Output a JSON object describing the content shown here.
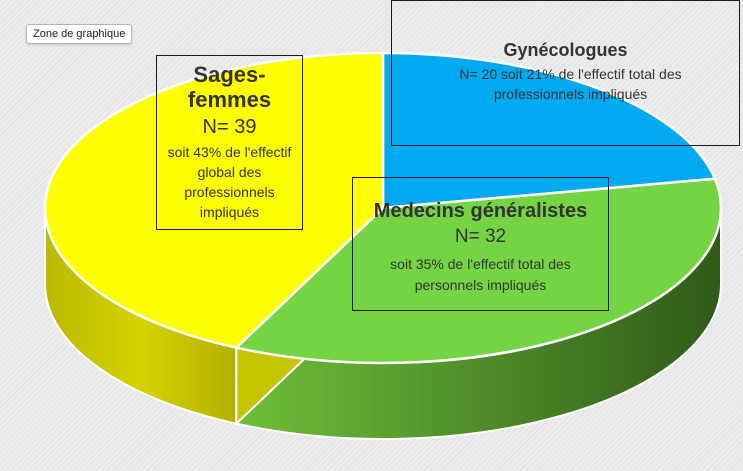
{
  "tooltip": "Zone de graphique",
  "chart_data": {
    "type": "pie",
    "title": "",
    "categories": [
      "Gynécologues",
      "Medecins généralistes",
      "Sages-femmes"
    ],
    "values": [
      20,
      32,
      39
    ],
    "percentages": [
      21,
      35,
      43
    ],
    "colors": [
      "#00a9f0",
      "#74d444",
      "#ffff00"
    ],
    "style": "3d",
    "labels": {
      "sages_femmes": {
        "name": "Sages-femmes",
        "n": "N= 39",
        "desc": "soit 43% de l'effectif global des professionnels impliqués"
      },
      "gynecologues": {
        "name": "Gynécologues",
        "desc": "N= 20 soit 21% de l'effectif total des professionnels  impliqués"
      },
      "medecins": {
        "name": "Medecins généralistes",
        "n": "N= 32",
        "desc": "soit 35% de l'effectif total des personnels  impliqués"
      }
    }
  }
}
